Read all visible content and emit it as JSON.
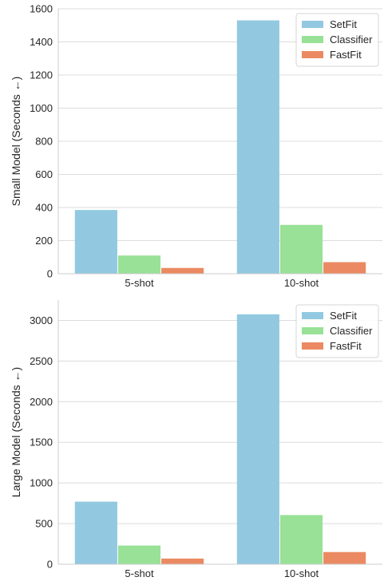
{
  "chart_data": [
    {
      "type": "bar",
      "ylabel": "Small Model (Seconds ←)",
      "categories": [
        "5-shot",
        "10-shot"
      ],
      "ylim": [
        0,
        1600
      ],
      "yticks": [
        0,
        200,
        400,
        600,
        800,
        1000,
        1200,
        1400,
        1600
      ],
      "grid": true,
      "legend_position": "top-right",
      "series": [
        {
          "name": "SetFit",
          "color": "#92c9e0",
          "values": [
            385,
            1530
          ]
        },
        {
          "name": "Classifier",
          "color": "#98e197",
          "values": [
            110,
            295
          ]
        },
        {
          "name": "FastFit",
          "color": "#eb8a62",
          "values": [
            35,
            70
          ]
        }
      ]
    },
    {
      "type": "bar",
      "ylabel": "Large Model (Seconds ←)",
      "categories": [
        "5-shot",
        "10-shot"
      ],
      "ylim": [
        0,
        3250
      ],
      "yticks": [
        0,
        500,
        1000,
        1500,
        2000,
        2500,
        3000
      ],
      "grid": true,
      "legend_position": "top-right",
      "series": [
        {
          "name": "SetFit",
          "color": "#92c9e0",
          "values": [
            770,
            3075
          ]
        },
        {
          "name": "Classifier",
          "color": "#98e197",
          "values": [
            230,
            605
          ]
        },
        {
          "name": "FastFit",
          "color": "#eb8a62",
          "values": [
            70,
            150
          ]
        }
      ]
    }
  ]
}
